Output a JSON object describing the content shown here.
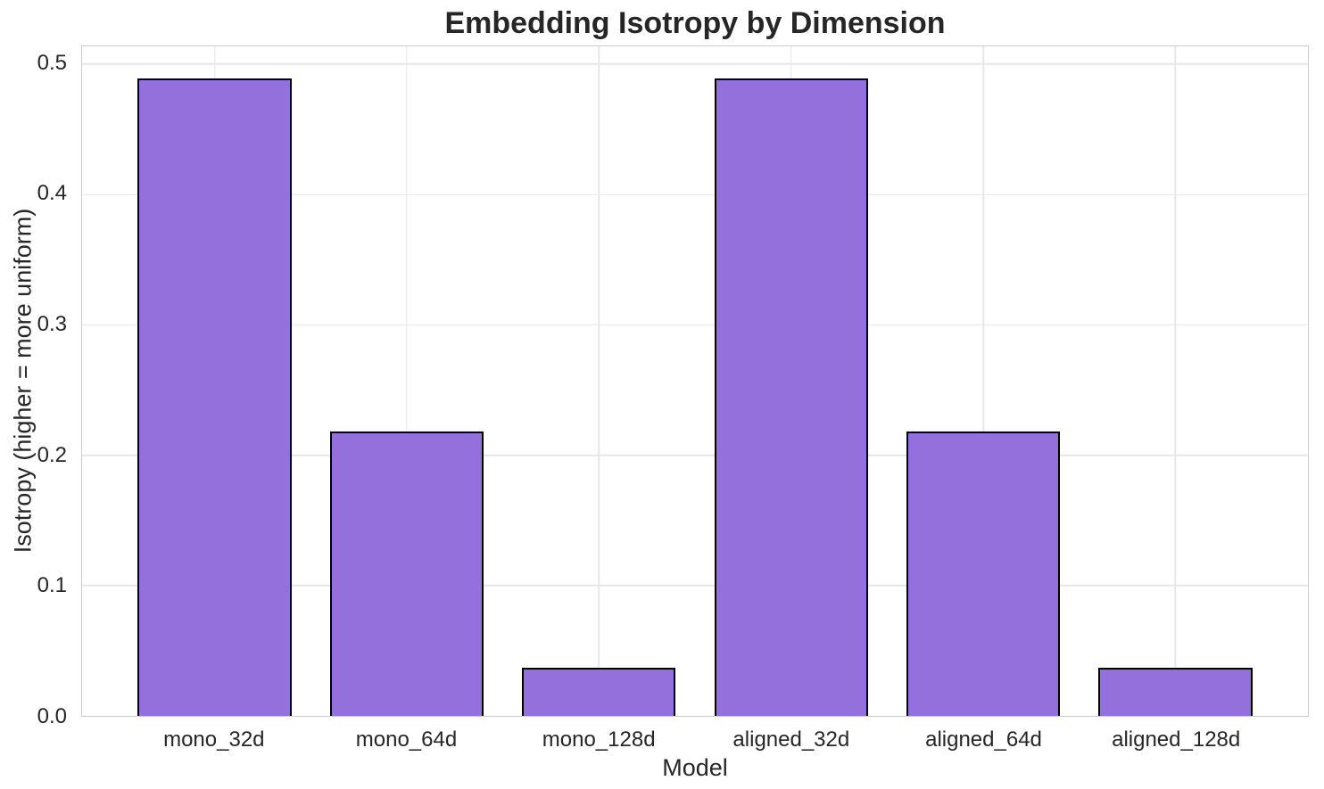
{
  "chart_data": {
    "type": "bar",
    "title": "Embedding Isotropy by Dimension",
    "xlabel": "Model",
    "ylabel": "Isotropy (higher = more uniform)",
    "categories": [
      "mono_32d",
      "mono_64d",
      "mono_128d",
      "aligned_32d",
      "aligned_64d",
      "aligned_128d"
    ],
    "values": [
      0.489,
      0.218,
      0.037,
      0.489,
      0.218,
      0.037
    ],
    "ylim": [
      0,
      0.5135
    ],
    "yticks": [
      0.0,
      0.1,
      0.2,
      0.3,
      0.4,
      0.5
    ],
    "ytick_labels": [
      "0.0",
      "0.1",
      "0.2",
      "0.3",
      "0.4",
      "0.5"
    ],
    "bar_width_units": 0.8,
    "grid": true,
    "legend_position": "none",
    "colors": {
      "bar_fill": "#9370DB",
      "bar_edge": "#000000",
      "grid": "#e7e7e7",
      "spine": "#cccccc",
      "text": "#262626",
      "background": "#ffffff"
    }
  }
}
